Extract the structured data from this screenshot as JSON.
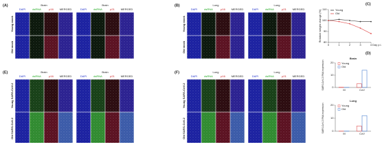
{
  "panels": [
    {
      "label": "(A)",
      "blocks": [
        {
          "title": "Brain",
          "columns": [
            "DAPI",
            "dsRNA",
            "p16",
            "MERGED"
          ]
        },
        {
          "title": "Brain",
          "columns": [
            "DAPI",
            "dsRNA",
            "p21",
            "MERGED"
          ]
        }
      ],
      "rows": [
        "Young mock",
        "Old mock"
      ]
    },
    {
      "label": "(B)",
      "blocks": [
        {
          "title": "Lung",
          "columns": [
            "DAPI",
            "dsRNA",
            "p16",
            "MERGED"
          ]
        },
        {
          "title": "Lung",
          "columns": [
            "DAPI",
            "dsRNA",
            "p21",
            "MERGED"
          ]
        }
      ],
      "rows": [
        "Young mock",
        "Old mock"
      ]
    },
    {
      "label": "(E)",
      "blocks": [
        {
          "title": "Brain",
          "columns": [
            "DAPI",
            "dsRNA",
            "p16",
            "MERGED"
          ]
        },
        {
          "title": "Brain",
          "columns": [
            "DAPI",
            "dsRNA",
            "p21",
            "MERGED"
          ]
        }
      ],
      "rows": [
        "Young SARS-CoV-2",
        "Old SARS-CoV-2"
      ]
    },
    {
      "label": "(F)",
      "blocks": [
        {
          "title": "Lung",
          "columns": [
            "DAPI",
            "dsRNA",
            "p16",
            "MERGED"
          ]
        },
        {
          "title": "Lung",
          "columns": [
            "DAPI",
            "dsRNA",
            "p21",
            "MERGED"
          ]
        }
      ],
      "rows": [
        "Young SARS-CoV-2",
        "Old SARS-CoV-2"
      ]
    }
  ],
  "chart_c": {
    "label": "(C)",
    "type": "line",
    "ylabel": "Relative weight change (%)",
    "xlabel": "Day p.i.",
    "x": [
      0,
      1,
      2,
      3,
      4
    ],
    "xticks": [
      0,
      1,
      2,
      3,
      4
    ],
    "ylim": [
      80,
      110
    ],
    "yticks": [
      80,
      90,
      100,
      110
    ],
    "series": [
      {
        "name": "Young",
        "color": "#333333",
        "values": [
          100,
          101,
          100,
          99,
          99
        ]
      },
      {
        "name": "Old",
        "color": "#e05050",
        "values": [
          100,
          99,
          97,
          93,
          88
        ]
      }
    ]
  },
  "chart_d": {
    "label": "(D)",
    "charts": [
      {
        "title": "Brain",
        "type": "bar",
        "ylabel": "SARS-CoV-2 RNA expression",
        "categories": [
          "M",
          "CoV"
        ],
        "ylim": [
          0,
          20
        ],
        "yticks": [
          0,
          10,
          20
        ],
        "series": [
          {
            "name": "Young",
            "color": "#e05050",
            "values": [
              0.2,
              3
            ]
          },
          {
            "name": "Old",
            "color": "#4a7fd0",
            "values": [
              0.1,
              14
            ]
          }
        ]
      },
      {
        "title": "Lung",
        "type": "bar",
        "ylabel": "SARS-CoV-2 RNA expression",
        "categories": [
          "M",
          "CoV"
        ],
        "ylim": [
          0,
          20
        ],
        "yticks": [
          0,
          10,
          20
        ],
        "series": [
          {
            "name": "Young",
            "color": "#e05050",
            "values": [
              0.1,
              4
            ]
          },
          {
            "name": "Old",
            "color": "#4a7fd0",
            "values": [
              0.1,
              12
            ]
          }
        ]
      }
    ]
  }
}
